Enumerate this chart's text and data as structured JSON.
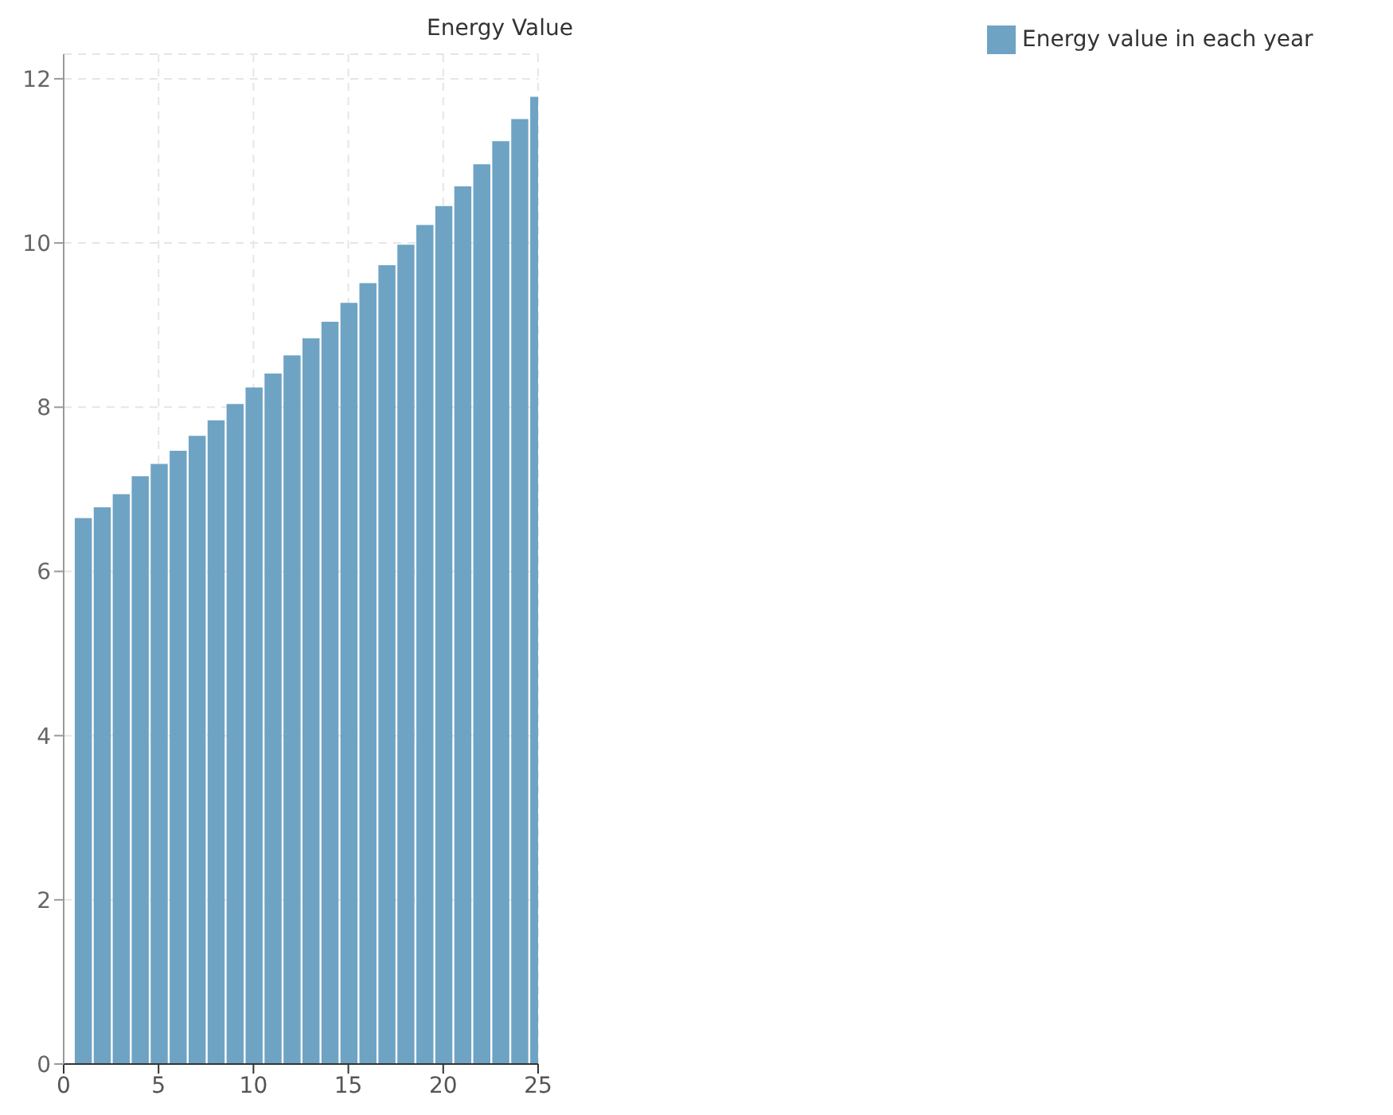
{
  "chart_data": {
    "type": "bar",
    "title": "Energy Value",
    "x": [
      1,
      2,
      3,
      4,
      5,
      6,
      7,
      8,
      9,
      10,
      11,
      12,
      13,
      14,
      15,
      16,
      17,
      18,
      19,
      20,
      21,
      22,
      23,
      24,
      25
    ],
    "series": [
      {
        "name": "Energy value in each year",
        "color": "#6fa3c4",
        "values": [
          6.65,
          6.78,
          6.94,
          7.16,
          7.31,
          7.47,
          7.65,
          7.84,
          8.04,
          8.24,
          8.41,
          8.63,
          8.84,
          9.04,
          9.27,
          9.51,
          9.73,
          9.98,
          10.22,
          10.45,
          10.69,
          10.96,
          11.24,
          11.51,
          11.78
        ]
      }
    ],
    "xlim": [
      0,
      25
    ],
    "xticks": [
      0,
      5,
      10,
      15,
      20,
      25
    ],
    "ylim": [
      0,
      12.3
    ],
    "yticks": [
      0,
      2,
      4,
      6,
      8,
      10,
      12
    ],
    "grid": true,
    "legend": "top right"
  }
}
